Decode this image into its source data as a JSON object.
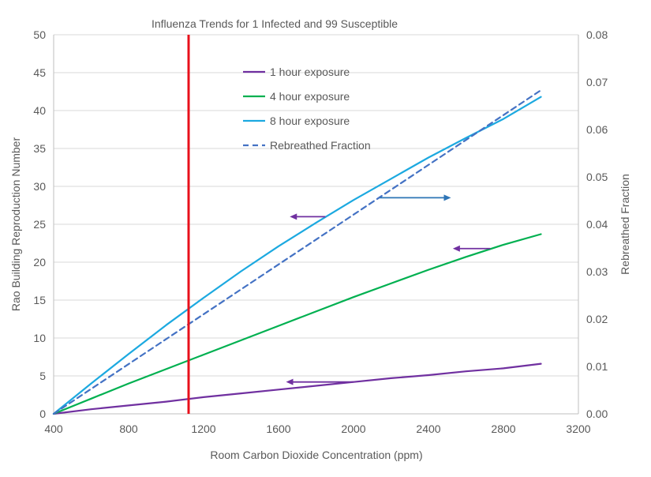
{
  "chart_data": {
    "type": "line",
    "title": "Influenza Trends for 1 Infected and 99 Susceptible",
    "xlabel": "Room Carbon Dioxide Concentration (ppm)",
    "ylabel": "Rao Building Reproduction Number",
    "y2label": "Rebreathed Fraction",
    "xlim": [
      400,
      3200
    ],
    "ylim": [
      0,
      50
    ],
    "y2lim": [
      0,
      0.08
    ],
    "x_ticks": [
      "400",
      "800",
      "1200",
      "1600",
      "2000",
      "2400",
      "2800",
      "3200"
    ],
    "y_ticks": [
      "0",
      "5",
      "10",
      "15",
      "20",
      "25",
      "30",
      "35",
      "40",
      "45",
      "50"
    ],
    "y2_ticks": [
      "0.00",
      "0.01",
      "0.02",
      "0.03",
      "0.04",
      "0.05",
      "0.06",
      "0.07",
      "0.08"
    ],
    "gridlines": true,
    "legend_position": "top-center",
    "series": [
      {
        "name": "1 hour exposure",
        "axis": "left",
        "style": "solid",
        "color": "#7030A0",
        "x": [
          400,
          600,
          800,
          1000,
          1200,
          1400,
          1600,
          1800,
          2000,
          2200,
          2400,
          2600,
          2800,
          3000
        ],
        "y": [
          0,
          0.6,
          1.1,
          1.6,
          2.2,
          2.7,
          3.2,
          3.7,
          4.2,
          4.7,
          5.1,
          5.6,
          6.0,
          6.6
        ]
      },
      {
        "name": "4 hour exposure",
        "axis": "left",
        "style": "solid",
        "color": "#00B050",
        "x": [
          400,
          600,
          800,
          1000,
          1200,
          1400,
          1600,
          1800,
          2000,
          2200,
          2400,
          2600,
          2800,
          3000
        ],
        "y": [
          0,
          2.0,
          4.0,
          5.9,
          7.8,
          9.7,
          11.6,
          13.5,
          15.4,
          17.2,
          19.0,
          20.7,
          22.3,
          23.7
        ]
      },
      {
        "name": "8 hour exposure",
        "axis": "left",
        "style": "solid",
        "color": "#1CA9E0",
        "x": [
          400,
          600,
          800,
          1000,
          1200,
          1400,
          1600,
          1800,
          2000,
          2200,
          2400,
          2600,
          2800,
          3000
        ],
        "y": [
          0,
          4.0,
          7.9,
          11.7,
          15.3,
          18.8,
          22.1,
          25.2,
          28.2,
          31.0,
          33.8,
          36.4,
          38.9,
          41.8
        ]
      },
      {
        "name": "Rebreathed Fraction",
        "axis": "right",
        "style": "dashed",
        "color": "#4472C4",
        "x": [
          400,
          3000
        ],
        "y": [
          0,
          0.0683
        ]
      }
    ],
    "reference_line": {
      "axis": "x",
      "x": 1120,
      "color": "#E8101B"
    },
    "arrows": [
      {
        "direction": "left",
        "color": "#7030A0",
        "x_from": 1850,
        "x_to": 1660,
        "y": 26
      },
      {
        "direction": "right",
        "color": "#2E75B6",
        "x_from": 2140,
        "x_to": 2520,
        "y": 28.5
      },
      {
        "direction": "left",
        "color": "#7030A0",
        "x_from": 2730,
        "x_to": 2530,
        "y": 21.8
      },
      {
        "direction": "left",
        "color": "#7030A0",
        "x_from": 2000,
        "x_to": 1640,
        "y": 4.2
      }
    ]
  }
}
